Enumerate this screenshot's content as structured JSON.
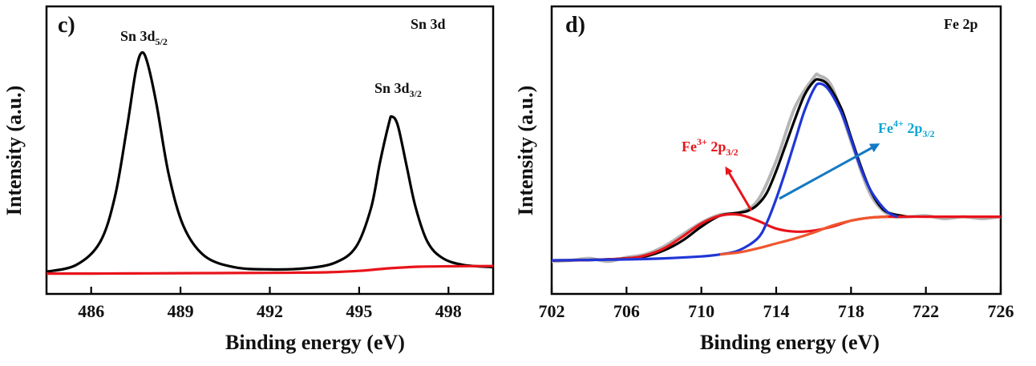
{
  "chart_data": [
    {
      "type": "line",
      "panel_label": "c)",
      "corner_title": "Sn 3d",
      "xlabel": "Binding energy (eV)",
      "ylabel": "Intensity (a.u.)",
      "xlim": [
        484.5,
        499.5
      ],
      "ylim": [
        0,
        1
      ],
      "x_ticks": [
        486,
        489,
        492,
        495,
        498
      ],
      "y_ticks_shown": false,
      "grid": false,
      "annotations": [
        {
          "text": "Sn 3d",
          "sub": "5/2",
          "x": 487.7
        },
        {
          "text": "Sn 3d",
          "sub": "3/2",
          "x": 496.1
        }
      ],
      "peaks": [
        {
          "center": 487.7,
          "height": 0.98
        },
        {
          "center": 496.1,
          "height": 0.7
        }
      ],
      "series": [
        {
          "color": "#000000",
          "x": [
            484.5,
            485.5,
            486.3,
            486.8,
            487.2,
            487.5,
            487.7,
            487.9,
            488.2,
            488.6,
            489.1,
            489.8,
            490.8,
            492.0,
            493.2,
            494.2,
            494.9,
            495.4,
            495.7,
            496.0,
            496.1,
            496.3,
            496.6,
            496.9,
            497.3,
            497.8,
            498.5,
            499.5
          ],
          "values": [
            0.02,
            0.05,
            0.15,
            0.35,
            0.65,
            0.9,
            0.98,
            0.93,
            0.75,
            0.45,
            0.22,
            0.09,
            0.04,
            0.03,
            0.035,
            0.06,
            0.13,
            0.3,
            0.5,
            0.67,
            0.7,
            0.66,
            0.48,
            0.3,
            0.15,
            0.08,
            0.05,
            0.04
          ]
        },
        {
          "color": "#e8141b",
          "x": [
            484.5,
            486,
            488,
            490,
            492,
            493,
            494,
            495,
            496,
            497,
            498,
            499.5
          ],
          "values": [
            0.012,
            0.012,
            0.013,
            0.014,
            0.015,
            0.016,
            0.018,
            0.024,
            0.035,
            0.042,
            0.044,
            0.045
          ]
        }
      ]
    },
    {
      "type": "line",
      "panel_label": "d)",
      "corner_title": "Fe 2p",
      "xlabel": "Binding energy (eV)",
      "ylabel": "Intensity (a.u.)",
      "xlim": [
        702,
        726
      ],
      "ylim": [
        0,
        1
      ],
      "x_ticks": [
        702,
        706,
        710,
        714,
        718,
        722,
        726
      ],
      "y_ticks_shown": false,
      "grid": false,
      "annotations": [
        {
          "text": "Fe",
          "sup": "3+",
          "tail": " 2p",
          "sub": "3/2",
          "color": "#e8141b"
        },
        {
          "text": "Fe",
          "sup": "4+",
          "tail": " 2p",
          "sub": "3/2",
          "color": "#0fa5d6"
        }
      ],
      "series": [
        {
          "color": "#b5b5b5",
          "x": [
            702,
            703,
            704,
            705,
            706,
            707,
            708,
            709,
            710,
            711,
            712,
            713,
            714,
            715,
            716,
            716.3,
            717,
            718,
            719,
            720,
            721,
            722,
            723,
            724,
            725,
            726
          ],
          "values": [
            0.055,
            0.06,
            0.07,
            0.055,
            0.075,
            0.09,
            0.13,
            0.19,
            0.25,
            0.29,
            0.3,
            0.36,
            0.56,
            0.83,
            0.98,
            0.99,
            0.93,
            0.66,
            0.4,
            0.29,
            0.28,
            0.285,
            0.27,
            0.28,
            0.27,
            0.28
          ]
        },
        {
          "color": "#000000",
          "x": [
            702,
            704,
            706,
            707,
            708,
            709,
            710,
            711,
            712,
            712.5,
            713,
            713.5,
            714,
            714.5,
            715,
            715.5,
            716,
            716.3,
            716.8,
            717.5,
            718,
            718.5,
            719,
            719.5,
            720,
            721
          ],
          "values": [
            0.06,
            0.062,
            0.07,
            0.08,
            0.11,
            0.16,
            0.23,
            0.285,
            0.3,
            0.31,
            0.34,
            0.4,
            0.51,
            0.64,
            0.77,
            0.89,
            0.96,
            0.97,
            0.94,
            0.82,
            0.68,
            0.54,
            0.42,
            0.34,
            0.3,
            0.28
          ]
        },
        {
          "color": "#e8141b",
          "x": [
            702,
            704,
            706,
            707,
            708,
            709,
            710,
            711,
            712,
            713,
            714,
            715,
            716,
            717,
            718,
            719,
            720,
            722,
            724,
            726
          ],
          "values": [
            0.06,
            0.062,
            0.07,
            0.085,
            0.12,
            0.18,
            0.245,
            0.285,
            0.29,
            0.26,
            0.22,
            0.205,
            0.21,
            0.23,
            0.26,
            0.275,
            0.28,
            0.28,
            0.28,
            0.28
          ]
        },
        {
          "color": "#1f36d6",
          "x": [
            702,
            704,
            706,
            708,
            710,
            711,
            712,
            713,
            713.5,
            714,
            714.5,
            715,
            715.5,
            716,
            716.3,
            716.8,
            717.5,
            718,
            718.5,
            719,
            719.5,
            720,
            720.5
          ],
          "values": [
            0.06,
            0.062,
            0.065,
            0.07,
            0.08,
            0.09,
            0.11,
            0.17,
            0.25,
            0.37,
            0.51,
            0.66,
            0.81,
            0.92,
            0.95,
            0.92,
            0.8,
            0.67,
            0.53,
            0.42,
            0.35,
            0.3,
            0.28
          ]
        },
        {
          "color": "#f0562e",
          "x": [
            711,
            712,
            713,
            714,
            715,
            716,
            717,
            718,
            719,
            720
          ],
          "values": [
            0.09,
            0.1,
            0.12,
            0.145,
            0.17,
            0.2,
            0.235,
            0.26,
            0.275,
            0.28
          ]
        }
      ]
    }
  ]
}
